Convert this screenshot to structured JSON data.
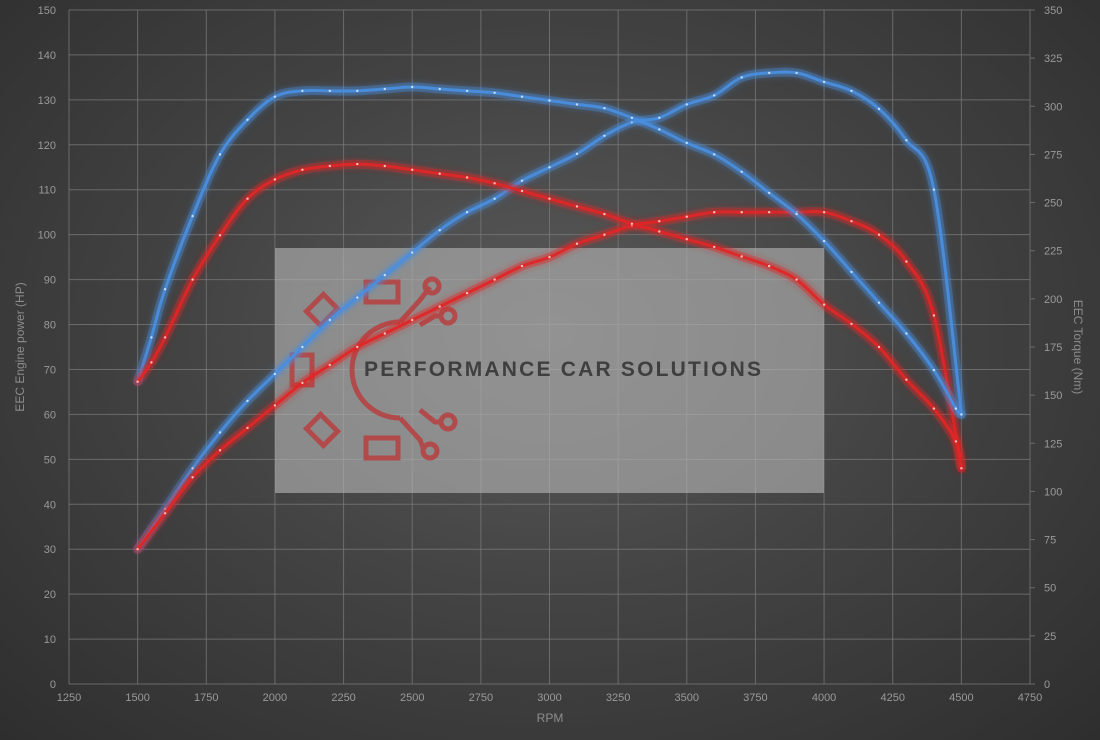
{
  "chart_data": {
    "type": "line",
    "xlabel": "RPM",
    "ylabel": "EEC Engine power (HP)",
    "y2label": "EEC Torque (Nm)",
    "xlim": [
      1250,
      4750
    ],
    "ylim": [
      0,
      150
    ],
    "y2lim": [
      0,
      350
    ],
    "xticks": [
      1250,
      1500,
      1750,
      2000,
      2250,
      2500,
      2750,
      3000,
      3250,
      3500,
      3750,
      4000,
      4250,
      4500,
      4750
    ],
    "yticks": [
      0,
      10,
      20,
      30,
      40,
      50,
      60,
      70,
      80,
      90,
      100,
      110,
      120,
      130,
      140,
      150
    ],
    "y2ticks": [
      0,
      25,
      50,
      75,
      100,
      125,
      150,
      175,
      200,
      225,
      250,
      275,
      300,
      325,
      350
    ],
    "grid": true,
    "series": [
      {
        "color": "#4a8fe0",
        "axis": "left",
        "x": [
          1500,
          1600,
          1700,
          1800,
          1900,
          2000,
          2100,
          2200,
          2300,
          2400,
          2500,
          2600,
          2700,
          2800,
          2900,
          3000,
          3100,
          3200,
          3300,
          3400,
          3500,
          3600,
          3700,
          3800,
          3900,
          4000,
          4100,
          4200,
          4300,
          4400,
          4500
        ],
        "values": [
          30,
          39,
          48,
          56,
          63,
          69,
          75,
          81,
          86,
          91,
          96,
          101,
          105,
          108,
          112,
          115,
          118,
          122,
          125,
          126,
          129,
          131,
          135,
          136,
          136,
          134,
          132,
          128,
          121,
          110,
          60
        ]
      },
      {
        "color": "#e02828",
        "axis": "left",
        "x": [
          1500,
          1600,
          1700,
          1800,
          1900,
          2000,
          2100,
          2200,
          2300,
          2400,
          2500,
          2600,
          2700,
          2800,
          2900,
          3000,
          3100,
          3200,
          3300,
          3400,
          3500,
          3600,
          3700,
          3800,
          3900,
          4000,
          4100,
          4200,
          4300,
          4400,
          4500
        ],
        "values": [
          30,
          38,
          46,
          52,
          57,
          62,
          67,
          71,
          75,
          78,
          81,
          84,
          87,
          90,
          93,
          95,
          98,
          100,
          102,
          103,
          104,
          105,
          105,
          105,
          105,
          105,
          103,
          100,
          94,
          82,
          48
        ]
      },
      {
        "color": "#4a8fe0",
        "axis": "right",
        "x": [
          1500,
          1550,
          1600,
          1700,
          1800,
          1900,
          2000,
          2100,
          2200,
          2300,
          2400,
          2500,
          2600,
          2700,
          2800,
          2900,
          3000,
          3100,
          3200,
          3300,
          3400,
          3500,
          3600,
          3700,
          3800,
          3900,
          4000,
          4100,
          4200,
          4300,
          4400,
          4480,
          4500
        ],
        "values": [
          157,
          180,
          205,
          243,
          275,
          293,
          305,
          308,
          308,
          308,
          309,
          310,
          309,
          308,
          307,
          305,
          303,
          301,
          299,
          294,
          288,
          281,
          275,
          266,
          255,
          244,
          230,
          214,
          198,
          182,
          163,
          143,
          140
        ]
      },
      {
        "color": "#e02828",
        "axis": "right",
        "x": [
          1500,
          1550,
          1600,
          1700,
          1800,
          1900,
          2000,
          2100,
          2200,
          2300,
          2400,
          2500,
          2600,
          2700,
          2800,
          2900,
          3000,
          3100,
          3200,
          3300,
          3400,
          3500,
          3600,
          3700,
          3800,
          3900,
          4000,
          4100,
          4200,
          4300,
          4400,
          4480,
          4500
        ],
        "values": [
          157,
          167,
          180,
          210,
          233,
          252,
          262,
          267,
          269,
          270,
          269,
          267,
          265,
          263,
          260,
          256,
          252,
          248,
          244,
          239,
          235,
          231,
          227,
          222,
          217,
          210,
          197,
          187,
          175,
          158,
          143,
          126,
          112
        ]
      }
    ]
  },
  "watermark": {
    "text": "PERFORMANCE CAR SOLUTIONS",
    "logo_color": "#c83a3a"
  }
}
